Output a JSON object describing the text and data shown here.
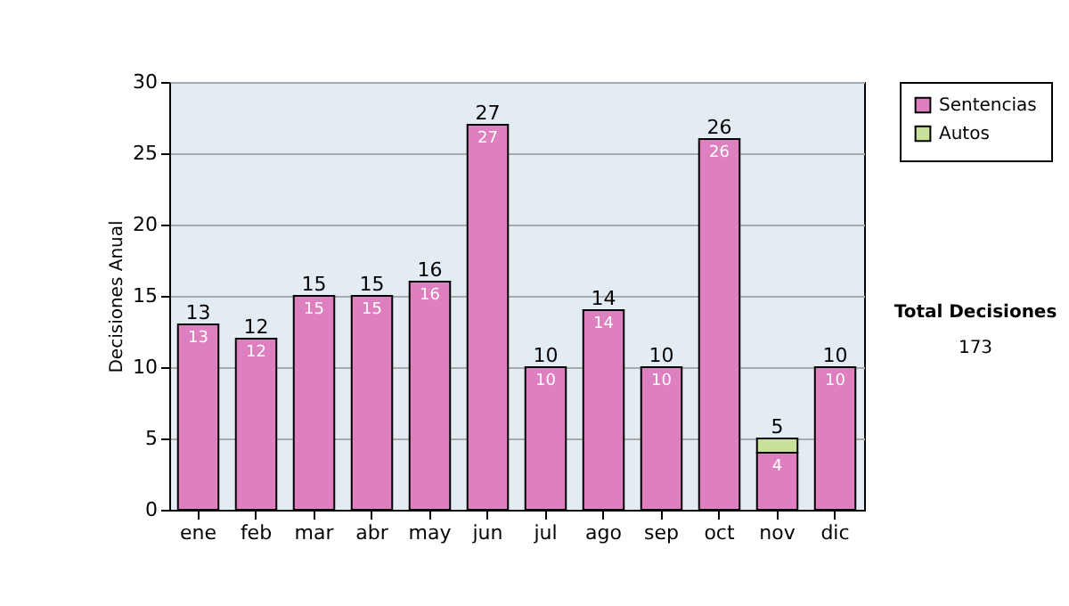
{
  "chart_data": {
    "type": "bar",
    "stacked": true,
    "ylabel": "Decisiones Anual",
    "categories": [
      "ene",
      "feb",
      "mar",
      "abr",
      "may",
      "jun",
      "jul",
      "ago",
      "sep",
      "oct",
      "nov",
      "dic"
    ],
    "series": [
      {
        "name": "Sentencias",
        "color": "#de7fbf",
        "values": [
          13,
          12,
          15,
          15,
          16,
          27,
          10,
          14,
          10,
          26,
          4,
          10
        ],
        "value_labels": [
          "13",
          "12",
          "15",
          "15",
          "16",
          "27",
          "10",
          "14",
          "10",
          "26",
          "4",
          "10"
        ]
      },
      {
        "name": "Autos",
        "color": "#c8e09a",
        "values": [
          null,
          null,
          null,
          null,
          null,
          null,
          null,
          null,
          null,
          null,
          1,
          null
        ]
      }
    ],
    "totals": [
      "13",
      "12",
      "15",
      "15",
      "16",
      "27",
      "10",
      "14",
      "10",
      "26",
      "5",
      "10"
    ],
    "ylim": [
      0,
      30
    ],
    "yticks": [
      0,
      5,
      10,
      15,
      20,
      25,
      30
    ],
    "grid": "y",
    "legend": "right",
    "annotations": [
      "Total Decisiones",
      "173"
    ]
  }
}
